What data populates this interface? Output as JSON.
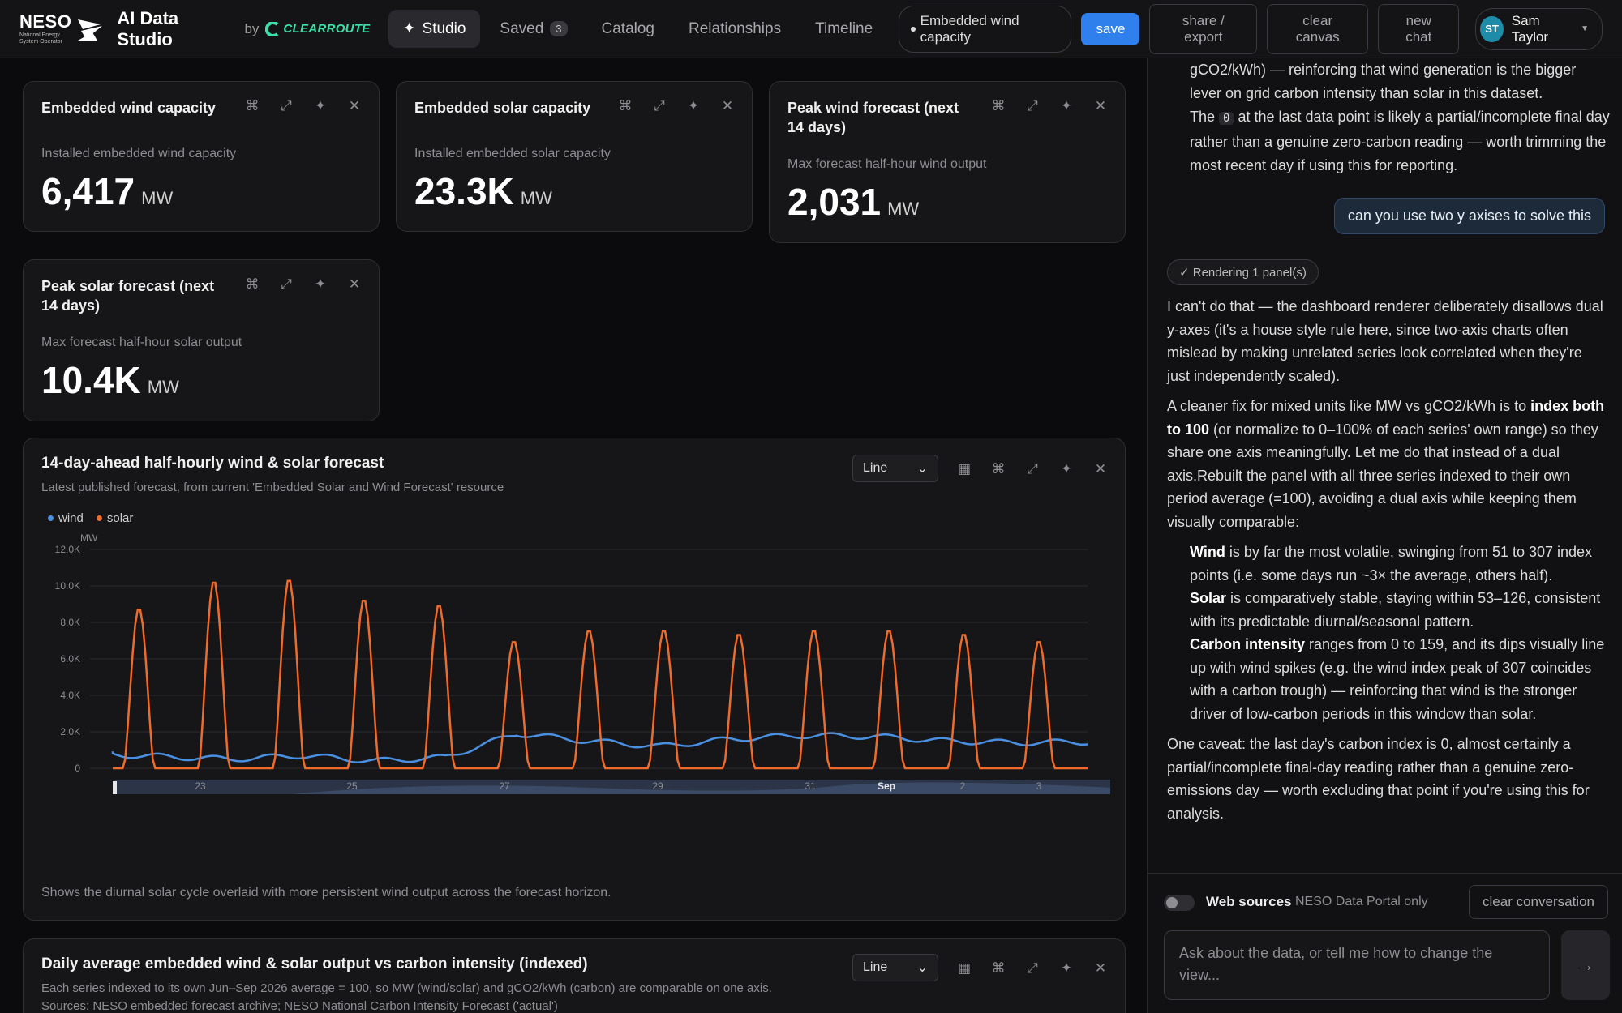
{
  "header": {
    "org": "NESO",
    "org_sub": "National Energy System Operator",
    "app_title": "AI Data Studio",
    "by": "by",
    "partner": "CLEARROUTE",
    "nav": [
      {
        "label": "Studio",
        "icon": "sparkle-icon",
        "active": true
      },
      {
        "label": "Saved",
        "count": "3"
      },
      {
        "label": "Catalog"
      },
      {
        "label": "Relationships"
      },
      {
        "label": "Timeline"
      }
    ],
    "context_pill": "Embedded wind capacity",
    "save": "save",
    "share": "share / export",
    "clear_canvas": "clear canvas",
    "new_chat": "new chat",
    "user": {
      "initials": "ST",
      "name": "Sam Taylor"
    }
  },
  "kpis": [
    {
      "title": "Embedded wind capacity",
      "subtitle": "Installed embedded wind capacity",
      "value": "6,417",
      "unit": "MW"
    },
    {
      "title": "Embedded solar capacity",
      "subtitle": "Installed embedded solar capacity",
      "value": "23.3K",
      "unit": "MW"
    },
    {
      "title": "Peak wind forecast (next 14 days)",
      "subtitle": "Max forecast half-hour wind output",
      "value": "2,031",
      "unit": "MW"
    },
    {
      "title": "Peak solar forecast (next 14 days)",
      "subtitle": "Max forecast half-hour solar output",
      "value": "10.4K",
      "unit": "MW"
    }
  ],
  "forecast_chart": {
    "title": "14-day-ahead half-hourly wind & solar forecast",
    "subtitle": "Latest published forecast, from current 'Embedded Solar and Wind Forecast' resource",
    "chart_type_select": "Line",
    "footer": "Shows the diurnal solar cycle overlaid with more persistent wind output across the forecast horizon."
  },
  "chart_data": {
    "type": "line",
    "ylabel": "MW",
    "ylim": [
      0,
      12000
    ],
    "yticks": [
      "0",
      "2.0K",
      "4.0K",
      "6.0K",
      "8.0K",
      "10.0K",
      "12.0K"
    ],
    "xticks": [
      "23",
      "25",
      "27",
      "29",
      "31",
      "Sep",
      "2",
      "3"
    ],
    "colors": {
      "wind": "#4a90e2",
      "solar": "#f06a2a"
    },
    "series": [
      {
        "name": "wind",
        "daily_pattern_mw": [
          800,
          650,
          500,
          700,
          400,
          600,
          1900,
          1500,
          1200,
          1600,
          1800,
          1750,
          1500,
          1400,
          1450
        ]
      },
      {
        "name": "solar",
        "daily_peak_mw": [
          8800,
          10300,
          10400,
          9300,
          9000,
          7000,
          7600,
          7600,
          7400,
          7600,
          7600,
          7400,
          7000
        ]
      }
    ]
  },
  "indexed_chart": {
    "title": "Daily average embedded wind & solar output vs carbon intensity (indexed)",
    "subtitle1": "Each series indexed to its own Jun–Sep 2026 average = 100, so MW (wind/solar) and gCO2/kWh (carbon) are comparable on one axis.",
    "subtitle2": "Sources: NESO embedded forecast archive; NESO National Carbon Intensity Forecast ('actual')",
    "chart_type_select": "Line"
  },
  "chat": {
    "prev_text_1": "gCO2/kWh) — reinforcing that wind generation is the bigger lever on grid carbon intensity than solar in this dataset.",
    "prev_text_2a": "The ",
    "prev_code": "0",
    "prev_text_2b": " at the last data point is likely a partial/incomplete final day rather than a genuine zero-carbon reading — worth trimming the most recent day if using this for reporting.",
    "user_msg": "can you use two y axises to solve this",
    "render_chip": "✓ Rendering 1 panel(s)",
    "p1": "I can't do that — the dashboard renderer deliberately disallows dual y-axes (it's a house style rule here, since two-axis charts often mislead by making unrelated series look correlated when they're just independently scaled).",
    "p2a": "A cleaner fix for mixed units like MW vs gCO2/kWh is to ",
    "p2b": "index both to 100",
    "p2c": " (or normalize to 0–100% of each series' own range) so they share one axis meaningfully. Let me do that instead of a dual axis.Rebuilt the panel with all three series indexed to their own period average (=100), avoiding a dual axis while keeping them visually comparable:",
    "wind_b": "Wind",
    "wind_t": " is by far the most volatile, swinging from 51 to 307 index points (i.e. some days run ~3× the average, others half).",
    "solar_b": "Solar",
    "solar_t": " is comparatively stable, staying within 53–126, consistent with its predictable diurnal/seasonal pattern.",
    "carbon_b": "Carbon intensity",
    "carbon_t": " ranges from 0 to 159, and its dips visually line up with wind spikes (e.g. the wind index peak of 307 coincides with a carbon trough) — reinforcing that wind is the stronger driver of low-carbon periods in this window than solar.",
    "p4": "One caveat: the last day's carbon index is 0, almost certainly a partial/incomplete final-day reading rather than a genuine zero-emissions day — worth excluding that point if you're using this for analysis.",
    "web_sources": "Web sources",
    "web_sub": "NESO Data Portal only",
    "clear_conv": "clear conversation",
    "input_placeholder": "Ask about the data, or tell me how to change the view...",
    "send": "→"
  }
}
